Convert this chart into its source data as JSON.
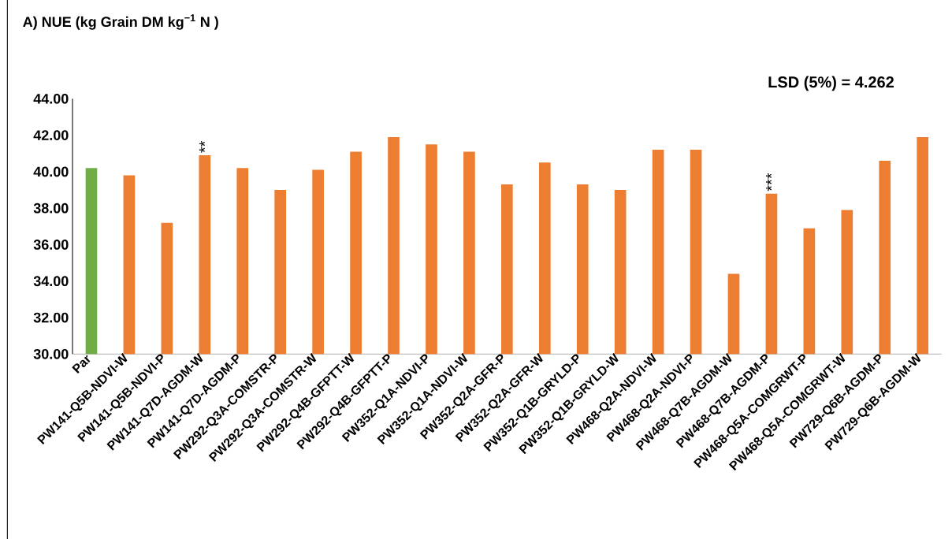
{
  "chart_data": {
    "type": "bar",
    "title": "A) NUE (kg Grain DM kg$^{−1}$ N )",
    "categories": [
      "Par",
      "PW141-Q5B-NDVI-W",
      "PW141-Q5B-NDVI-P",
      "PW141-Q7D-AGDM-W",
      "PW141-Q7D-AGDM-P",
      "PW292-Q3A-COMSTR-P",
      "PW292-Q3A-COMSTR-W",
      "PW292-Q4B-GFPTT-W",
      "PW292-Q4B-GFPTT-P",
      "PW352-Q1A-NDVI-P",
      "PW352-Q1A-NDVI-W",
      "PW352-Q2A-GFR-P",
      "PW352-Q2A-GFR-W",
      "PW352-Q1B-GRYLD-P",
      "PW352-Q1B-GRYLD-W",
      "PW468-Q2A-NDVI-W",
      "PW468-Q2A-NDVI-P",
      "PW468-Q7B-AGDM-W",
      "PW468-Q7B-AGDM-P",
      "PW468-Q5A-COMGRWT-P",
      "PW468-Q5A-COMGRWT-W",
      "PW729-Q6B-AGDM-P",
      "PW729-Q6B-AGDM-W"
    ],
    "values": [
      40.2,
      39.8,
      37.2,
      40.9,
      40.2,
      39.0,
      40.1,
      41.1,
      41.9,
      41.5,
      41.1,
      39.3,
      40.5,
      39.3,
      39.0,
      41.2,
      41.2,
      34.4,
      38.8,
      36.9,
      37.9,
      40.6,
      41.9
    ],
    "colors": [
      "#70ad47",
      "#ed7d31",
      "#ed7d31",
      "#ed7d31",
      "#ed7d31",
      "#ed7d31",
      "#ed7d31",
      "#ed7d31",
      "#ed7d31",
      "#ed7d31",
      "#ed7d31",
      "#ed7d31",
      "#ed7d31",
      "#ed7d31",
      "#ed7d31",
      "#ed7d31",
      "#ed7d31",
      "#ed7d31",
      "#ed7d31",
      "#ed7d31",
      "#ed7d31",
      "#ed7d31",
      "#ed7d31"
    ],
    "ylim": [
      30,
      44
    ],
    "yticks": [
      {
        "value": 30,
        "label": "30.00"
      },
      {
        "value": 32,
        "label": "32.00"
      },
      {
        "value": 34,
        "label": "34.00"
      },
      {
        "value": 36,
        "label": "36.00"
      },
      {
        "value": 38,
        "label": "38.00"
      },
      {
        "value": 40,
        "label": "40.00"
      },
      {
        "value": 42,
        "label": "42.00"
      },
      {
        "value": 44,
        "label": "44.00"
      }
    ],
    "annotations": [
      "LSD (5%) = 4.262",
      {
        "text": "**",
        "x": "PW141-Q7D-AGDM-W",
        "y": 40.9
      },
      {
        "text": "***",
        "x": "PW468-Q7B-AGDM-P",
        "y": 38.8
      }
    ]
  }
}
